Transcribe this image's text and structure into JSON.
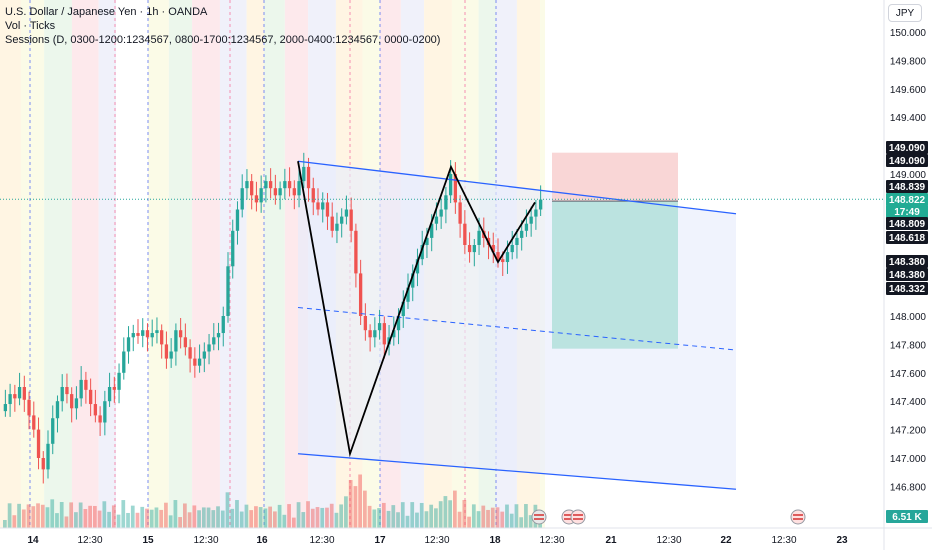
{
  "header": {
    "symbol_line": "U.S. Dollar / Japanese Yen · 1h · OANDA",
    "volume_line": "Vol · Ticks",
    "sessions_line": "Sessions (D, 0300-1200:1234567, 0800-1700:1234567, 2000-0400:1234567, 0000-0200)",
    "currency_button": "JPY"
  },
  "price_axis": {
    "ticks": [
      "150.000",
      "149.800",
      "149.600",
      "149.400",
      "149.000",
      "148.000",
      "147.800",
      "147.600",
      "147.400",
      "147.200",
      "147.000",
      "146.800"
    ],
    "labels": [
      {
        "text": "149.090",
        "style": "black"
      },
      {
        "text": "149.090",
        "style": "black"
      },
      {
        "text": "148.839",
        "style": "black"
      },
      {
        "text": "148.822",
        "style": "green"
      },
      {
        "text": "17:49",
        "style": "green"
      },
      {
        "text": "148.809",
        "style": "black"
      },
      {
        "text": "148.618",
        "style": "black"
      },
      {
        "text": "148.380",
        "style": "black"
      },
      {
        "text": "148.380",
        "style": "black"
      },
      {
        "text": "148.332",
        "style": "black"
      },
      {
        "text": "6.51 K",
        "style": "teal"
      }
    ]
  },
  "time_axis": {
    "labels": [
      "14",
      "12:30",
      "15",
      "12:30",
      "16",
      "12:30",
      "17",
      "12:30",
      "18",
      "12:30",
      "21",
      "12:30",
      "22",
      "12:30",
      "23"
    ]
  },
  "colors": {
    "up": "#26a69a",
    "down": "#ef5350",
    "channel": "#2962ff",
    "pattern": "#000000",
    "target_zone": "#b2dfdb",
    "stop_zone": "#f8cfcf",
    "channel_fill": "#e8ecfc"
  },
  "chart_data": {
    "type": "candlestick",
    "instrument": "U.S. Dollar / Japanese Yen",
    "timeframe": "1h",
    "ylim": [
      146.68,
      150.1
    ],
    "last_price": 148.822,
    "candles_close": [
      147.38,
      147.45,
      147.42,
      147.5,
      147.41,
      147.3,
      147.2,
      147.0,
      146.92,
      147.1,
      147.28,
      147.4,
      147.5,
      147.45,
      147.35,
      147.42,
      147.55,
      147.48,
      147.38,
      147.3,
      147.25,
      147.4,
      147.5,
      147.48,
      147.6,
      147.75,
      147.85,
      147.88,
      147.86,
      147.9,
      147.85,
      147.88,
      147.9,
      147.8,
      147.7,
      147.75,
      147.9,
      147.85,
      147.78,
      147.7,
      147.65,
      147.7,
      147.75,
      147.8,
      147.85,
      147.88,
      148.0,
      148.35,
      148.6,
      148.75,
      148.9,
      148.95,
      148.85,
      148.8,
      148.9,
      148.95,
      148.9,
      148.85,
      148.9,
      148.95,
      148.9,
      148.85,
      148.95,
      149.05,
      148.9,
      148.8,
      148.75,
      148.8,
      148.7,
      148.6,
      148.65,
      148.7,
      148.75,
      148.6,
      148.3,
      148.0,
      147.9,
      147.85,
      147.9,
      147.95,
      147.8,
      147.85,
      147.9,
      148.0,
      148.1,
      148.2,
      148.3,
      148.4,
      148.5,
      148.55,
      148.65,
      148.7,
      148.75,
      148.85,
      149.0,
      148.8,
      148.65,
      148.5,
      148.45,
      148.5,
      148.6,
      148.55,
      148.5,
      148.45,
      148.4,
      148.38,
      148.45,
      148.5,
      148.55,
      148.6,
      148.65,
      148.7,
      148.75,
      148.82
    ],
    "channel": {
      "upper": [
        149.09,
        148.72
      ],
      "lower": [
        147.03,
        146.78
      ],
      "mid": [
        148.06,
        147.76
      ]
    },
    "pattern_points": [
      149.09,
      147.03,
      149.05,
      148.38,
      148.8
    ],
    "position": {
      "entry": 148.809,
      "stop": 149.15,
      "target": 147.77
    }
  }
}
